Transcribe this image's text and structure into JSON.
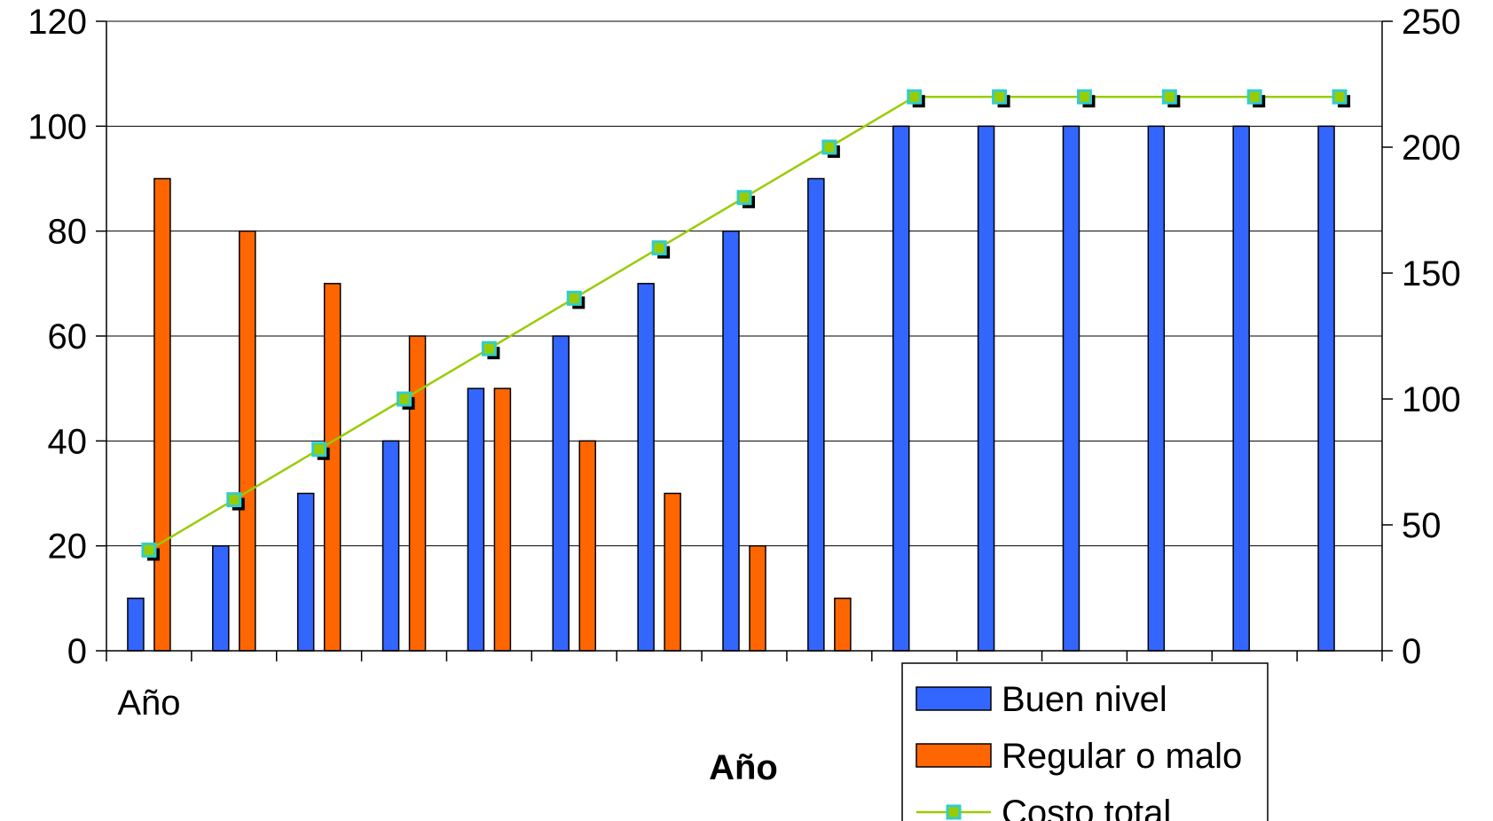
{
  "chart_data": {
    "type": "bar",
    "categories": [
      "Año",
      "",
      "",
      "",
      "",
      "",
      "",
      "",
      "",
      "",
      "",
      "",
      "",
      "",
      ""
    ],
    "xlabel": "Año",
    "ylabel": "",
    "ylim": [
      0,
      120
    ],
    "y_ticks": [
      0,
      20,
      40,
      60,
      80,
      100,
      120
    ],
    "y2lim": [
      0,
      250
    ],
    "y2_ticks": [
      0,
      50,
      100,
      150,
      200,
      250
    ],
    "grid": true,
    "legend_position": "bottom-right",
    "series": [
      {
        "name": "Buen nivel",
        "type": "bar",
        "axis": "left",
        "color": "#3366FF",
        "values": [
          10,
          20,
          30,
          40,
          50,
          60,
          70,
          80,
          90,
          100,
          100,
          100,
          100,
          100,
          100
        ]
      },
      {
        "name": "Regular o malo",
        "type": "bar",
        "axis": "left",
        "color": "#FF6600",
        "values": [
          90,
          80,
          70,
          60,
          50,
          40,
          30,
          20,
          10,
          0,
          0,
          0,
          0,
          0,
          0
        ]
      },
      {
        "name": "Costo total",
        "type": "line",
        "axis": "right",
        "color": "#99CC00",
        "marker_color": "#33CCCC",
        "values": [
          40,
          60,
          80,
          100,
          120,
          140,
          160,
          180,
          200,
          220,
          220,
          220,
          220,
          220,
          220
        ]
      }
    ]
  }
}
